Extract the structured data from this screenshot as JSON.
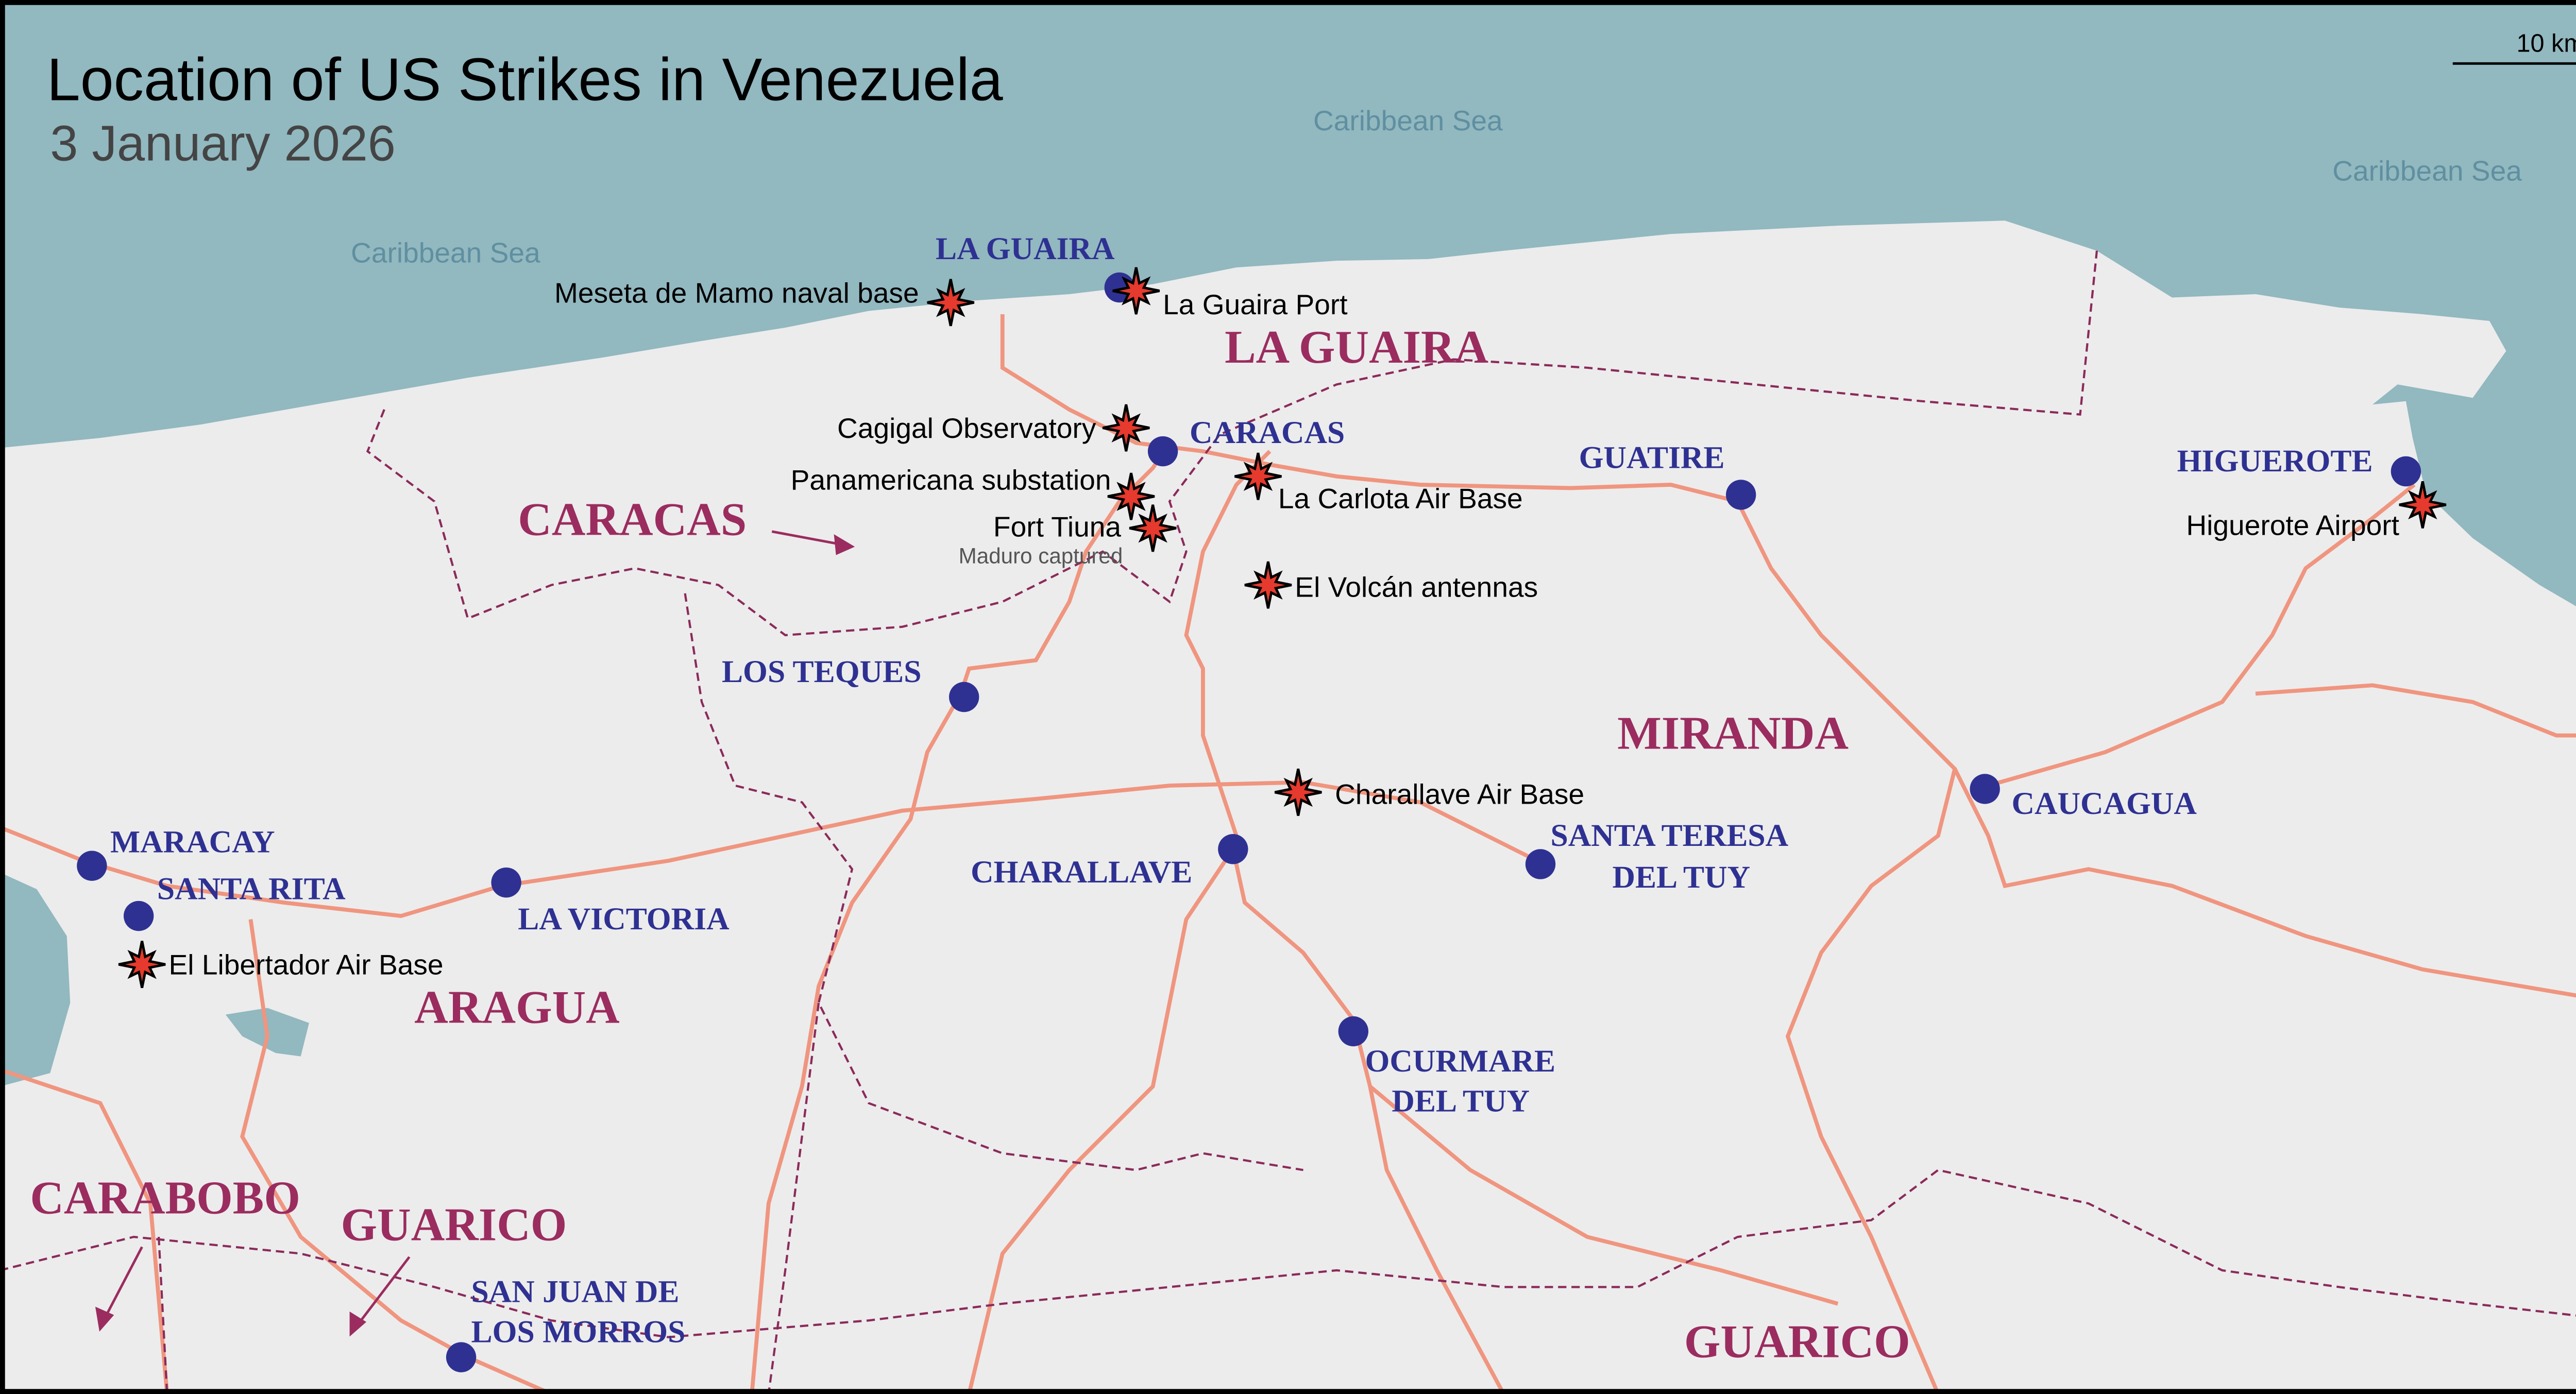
{
  "title": "Location of US Strikes in Venezuela",
  "subtitle": "3 January 2026",
  "scale_label": "10 km",
  "colors": {
    "sea": "#92b8c0",
    "land": "#ececec",
    "road": "#f0957f",
    "border": "#8b2a5a",
    "city": "#2e3192",
    "state": "#9b2c5f",
    "strike": "#e63a2e"
  },
  "seas": [
    "Caribbean Sea",
    "Caribbean Sea",
    "Caribbean Sea"
  ],
  "states": [
    "LA GUAIRA",
    "CARACAS",
    "MIRANDA",
    "ARAGUA",
    "CARABOBO",
    "GUARICO",
    "GUARICO"
  ],
  "cities": [
    "LA GUAIRA",
    "CARACAS",
    "GUATIRE",
    "HIGUEROTE",
    "LOS TEQUES",
    "MARACAY",
    "SANTA RITA",
    "LA VICTORIA",
    "CHARALLAVE",
    "SANTA TERESA",
    "DEL TUY",
    "CAUCAGUA",
    "OCURMARE",
    "DEL TUY",
    "SAN JUAN DE",
    "LOS MORROS"
  ],
  "strikes": [
    "Meseta de Mamo naval base",
    "La Guaira Port",
    "Cagigal Observatory",
    "Panamericana substation",
    "Fort Tiuna",
    "La Carlota Air Base",
    "El Volcán antennas",
    "Higuerote Airport",
    "Charallave Air Base",
    "El Libertador Air Base"
  ],
  "fort_tiuna_note": "Maduro captured",
  "icons": {
    "strike": "explosion-star-icon",
    "city": "city-dot-icon",
    "arrow": "arrow-icon"
  }
}
